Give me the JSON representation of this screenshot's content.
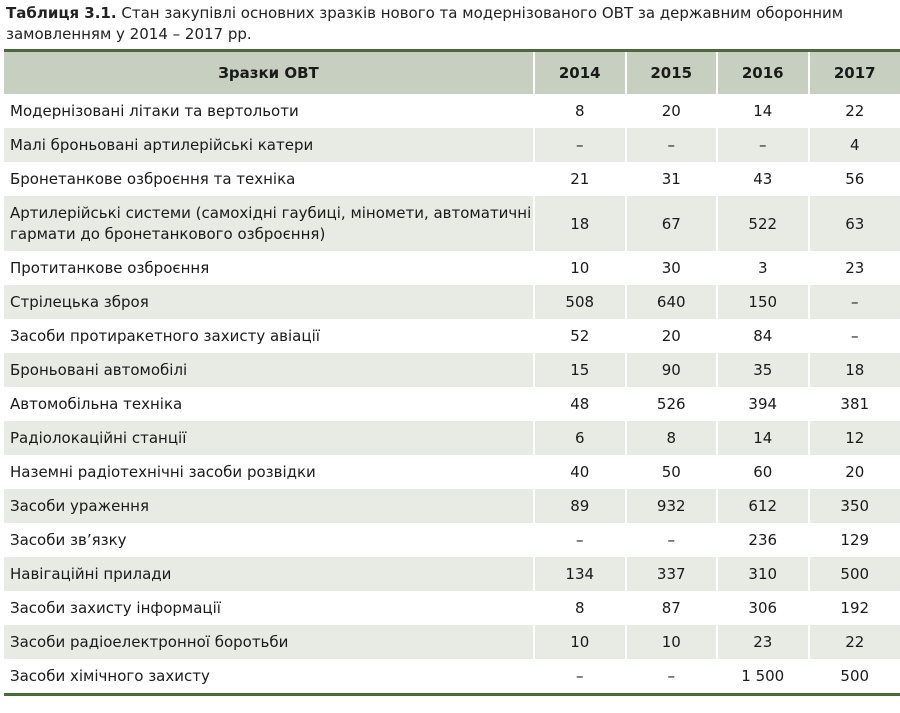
{
  "caption": {
    "label": "Таблиця 3.1.",
    "text": "Стан закупівлі основних зразків нового та модернізованого ОВТ за державним оборонним замовленням у 2014 – 2017 рр."
  },
  "table": {
    "headers": [
      "Зразки ОВТ",
      "2014",
      "2015",
      "2016",
      "2017"
    ],
    "rows": [
      {
        "name": "Модернізовані літаки та вертольоти",
        "values": [
          "8",
          "20",
          "14",
          "22"
        ]
      },
      {
        "name": "Малі броньовані артилерійські катери",
        "values": [
          "–",
          "–",
          "–",
          "4"
        ]
      },
      {
        "name": "Бронетанкове озброєння та техніка",
        "values": [
          "21",
          "31",
          "43",
          "56"
        ]
      },
      {
        "name": "Артилерійські системи (самохідні гаубиці, міномети, автоматичні гармати до бронетанкового озброєння)",
        "values": [
          "18",
          "67",
          "522",
          "63"
        ]
      },
      {
        "name": "Протитанкове озброєння",
        "values": [
          "10",
          "30",
          "3",
          "23"
        ]
      },
      {
        "name": "Стрілецька зброя",
        "values": [
          "508",
          "640",
          "150",
          "–"
        ]
      },
      {
        "name": "Засоби протиракетного захисту авіації",
        "values": [
          "52",
          "20",
          "84",
          "–"
        ]
      },
      {
        "name": "Броньовані автомобілі",
        "values": [
          "15",
          "90",
          "35",
          "18"
        ]
      },
      {
        "name": "Автомобільна техніка",
        "values": [
          "48",
          "526",
          "394",
          "381"
        ]
      },
      {
        "name": "Радіолокаційні станції",
        "values": [
          "6",
          "8",
          "14",
          "12"
        ]
      },
      {
        "name": "Наземні радіотехнічні засоби розвідки",
        "values": [
          "40",
          "50",
          "60",
          "20"
        ]
      },
      {
        "name": "Засоби ураження",
        "values": [
          "89",
          "932",
          "612",
          "350"
        ]
      },
      {
        "name": "Засоби зв’язку",
        "values": [
          "–",
          "–",
          "236",
          "129"
        ]
      },
      {
        "name": "Навігаційні прилади",
        "values": [
          "134",
          "337",
          "310",
          "500"
        ]
      },
      {
        "name": "Засоби захисту інформації",
        "values": [
          "8",
          "87",
          "306",
          "192"
        ]
      },
      {
        "name": "Засоби радіоелектронної боротьби",
        "values": [
          "10",
          "10",
          "23",
          "22"
        ]
      },
      {
        "name": "Засоби хімічного захисту",
        "values": [
          "–",
          "–",
          "1 500",
          "500"
        ]
      }
    ]
  },
  "colors": {
    "header_bg": "#c7cfc0",
    "alt_row_bg": "#e8ebe3",
    "rule": "#4a6a3a"
  }
}
